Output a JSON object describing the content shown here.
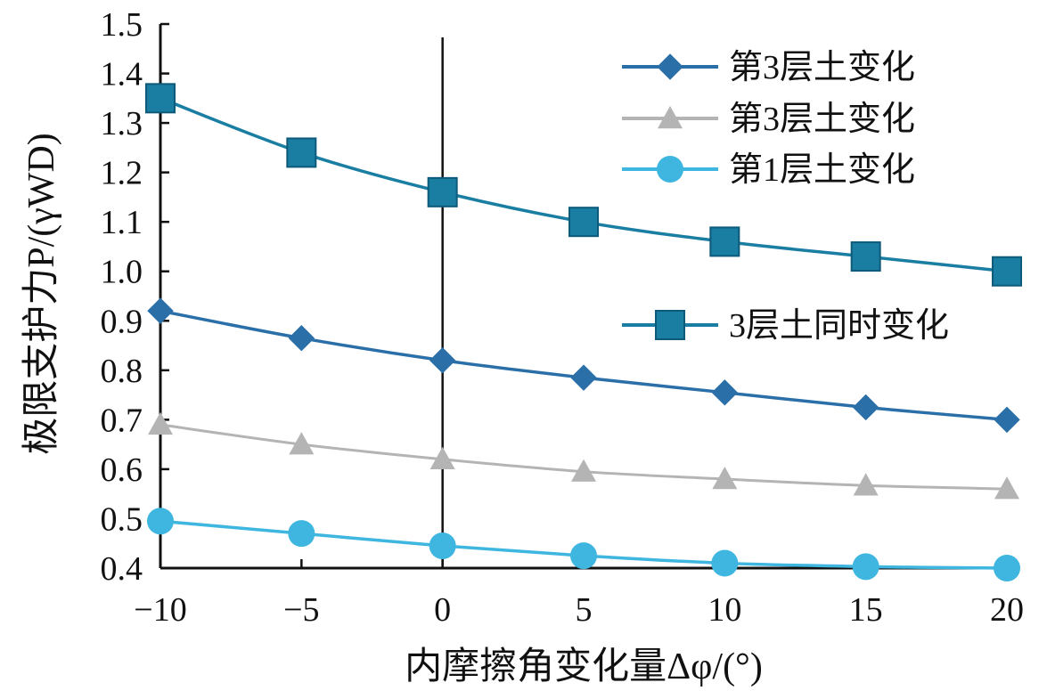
{
  "chart_data": {
    "type": "line",
    "xlabel": "内摩擦角变化量Δφ/(°)",
    "ylabel": "极限支护力P/(γWD)",
    "x": [
      -10,
      -5,
      0,
      5,
      10,
      15,
      20
    ],
    "xticks": [
      "−10",
      "−5",
      "0",
      "5",
      "10",
      "15",
      "20"
    ],
    "yticks": [
      "0.4",
      "0.5",
      "0.6",
      "0.7",
      "0.8",
      "0.9",
      "1.0",
      "1.1",
      "1.2",
      "1.3",
      "1.4",
      "1.5"
    ],
    "xlim": [
      -10,
      20
    ],
    "ylim": [
      0.4,
      1.5
    ],
    "grid": false,
    "reference_line_x": 0,
    "legend_position": "right",
    "series": [
      {
        "name": "第3层土变化",
        "marker": "diamond",
        "color": "#2a6fa8",
        "values": [
          0.92,
          0.865,
          0.82,
          0.785,
          0.755,
          0.725,
          0.7
        ]
      },
      {
        "name": "第3层土变化",
        "marker": "triangle",
        "color": "#b4b4b4",
        "values": [
          0.69,
          0.65,
          0.62,
          0.595,
          0.58,
          0.567,
          0.56
        ]
      },
      {
        "name": "第1层土变化",
        "marker": "circle",
        "color": "#3fb6df",
        "values": [
          0.495,
          0.47,
          0.445,
          0.425,
          0.41,
          0.403,
          0.4
        ]
      },
      {
        "name": "3层土同时变化",
        "marker": "square",
        "color": "#1a7ea3",
        "values": [
          1.35,
          1.24,
          1.16,
          1.1,
          1.06,
          1.03,
          1.0
        ]
      }
    ]
  }
}
